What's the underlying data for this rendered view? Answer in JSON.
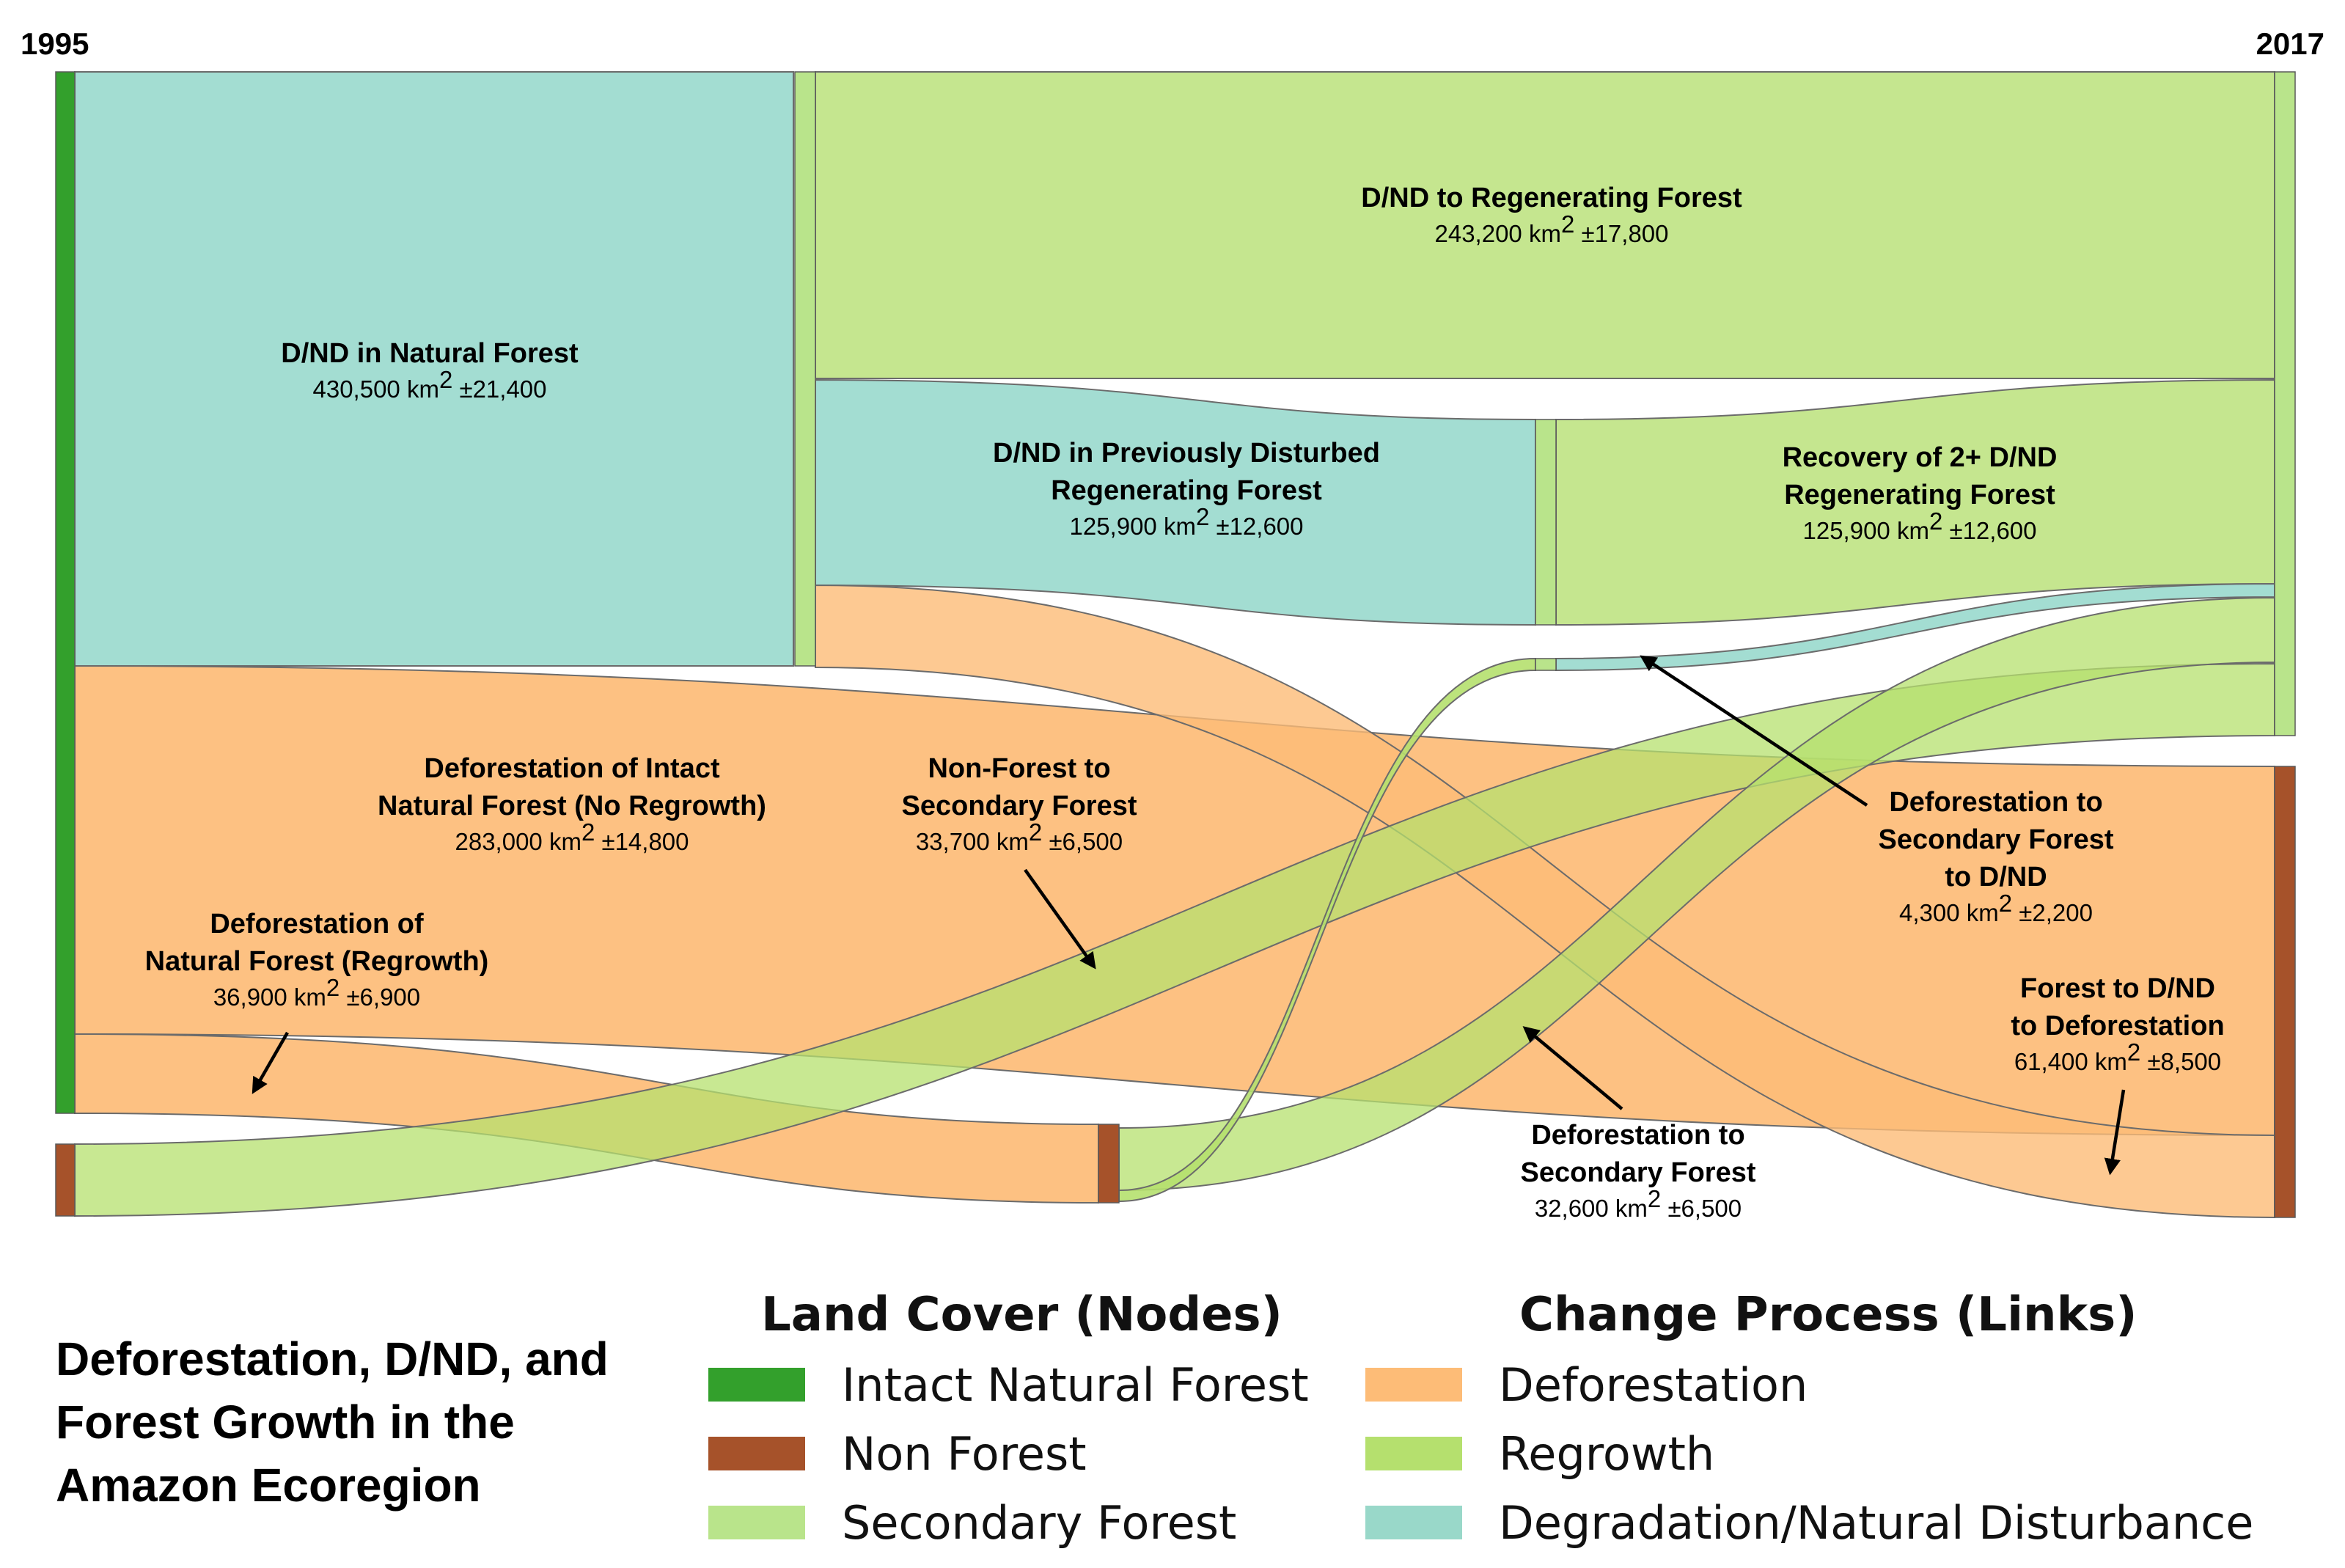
{
  "years": {
    "start": "1995",
    "end": "2017"
  },
  "title": "Deforestation, D/ND, and Forest Growth in the Amazon Ecoregion",
  "legend_nodes": {
    "heading": "Land Cover (Nodes)",
    "items": [
      {
        "label": "Intact Natural Forest",
        "color": "#33a02c"
      },
      {
        "label": "Non Forest",
        "color": "#a6522a"
      },
      {
        "label": "Secondary Forest",
        "color": "#b9e48b"
      }
    ]
  },
  "legend_links": {
    "heading": "Change Process (Links)",
    "items": [
      {
        "label": "Deforestation",
        "color": "#fdbc77"
      },
      {
        "label": "Regrowth",
        "color": "#b5e06e"
      },
      {
        "label": "Degradation/Natural Disturbance",
        "color": "#99d8c9"
      }
    ]
  },
  "flows": {
    "dnd_natural": {
      "name_lines": [
        "D/ND in Natural Forest"
      ],
      "value": "430,500 km",
      "sup": "2",
      "err": " ±21,400"
    },
    "dnd_regen": {
      "name_lines": [
        "D/ND to Regenerating Forest"
      ],
      "value": "243,200 km",
      "sup": "2",
      "err": " ±17,800"
    },
    "dnd_prev": {
      "name_lines": [
        "D/ND in Previously Disturbed",
        "Regenerating Forest"
      ],
      "value": "125,900 km",
      "sup": "2",
      "err": " ±12,600"
    },
    "recovery": {
      "name_lines": [
        "Recovery of 2+ D/ND",
        "Regenerating Forest"
      ],
      "value": "125,900 km",
      "sup": "2",
      "err": " ±12,600"
    },
    "defor_intact": {
      "name_lines": [
        "Deforestation of Intact",
        "Natural Forest (No Regrowth)"
      ],
      "value": "283,000 km",
      "sup": "2",
      "err": " ±14,800"
    },
    "nonforest_sec": {
      "name_lines": [
        "Non-Forest to",
        "Secondary Forest"
      ],
      "value": "33,700 km",
      "sup": "2",
      "err": " ±6,500"
    },
    "defor_regrowth": {
      "name_lines": [
        "Deforestation of",
        "Natural Forest (Regrowth)"
      ],
      "value": "36,900 km",
      "sup": "2",
      "err": " ±6,900"
    },
    "defor_sec_dnd": {
      "name_lines": [
        "Deforestation to",
        "Secondary Forest",
        "to D/ND"
      ],
      "value": "4,300 km",
      "sup": "2",
      "err": " ±2,200"
    },
    "forest_dnd_defor": {
      "name_lines": [
        "Forest to D/ND",
        "to Deforestation"
      ],
      "value": "61,400 km",
      "sup": "2",
      "err": " ±8,500"
    },
    "defor_sec": {
      "name_lines": [
        "Deforestation to",
        "Secondary Forest"
      ],
      "value": "32,600 km",
      "sup": "2",
      "err": " ±6,500"
    }
  }
}
